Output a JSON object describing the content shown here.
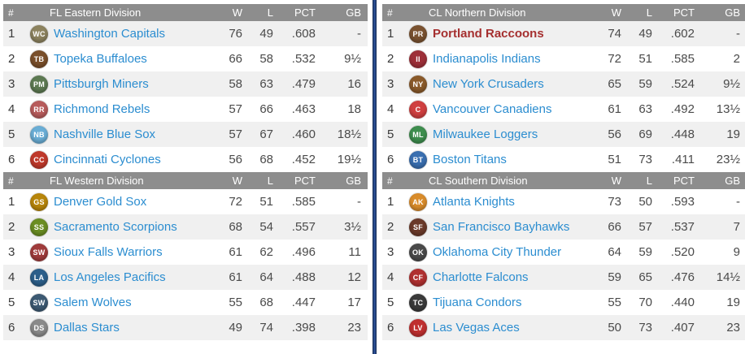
{
  "columns": {
    "rank": "#",
    "wins": "W",
    "losses": "L",
    "pct": "PCT",
    "gb": "GB"
  },
  "colors": {
    "header_bg": "#8d8d8d",
    "stripe": "#f0f0f0",
    "team_link": "#2b8dd0",
    "highlight_team": "#a52f2f",
    "divider": "#16294d"
  },
  "panels": [
    {
      "side": "left",
      "divisions": [
        {
          "name": "FL Eastern Division",
          "teams": [
            {
              "rank": "1",
              "name": "Washington Capitals",
              "icon": "capitals-logo",
              "icon_color": "#8d835f",
              "abbr": "WC",
              "w": "76",
              "l": "49",
              "pct": ".608",
              "gb": "-"
            },
            {
              "rank": "2",
              "name": "Topeka Buffaloes",
              "icon": "buffaloes-logo",
              "icon_color": "#7a4f2a",
              "abbr": "TB",
              "w": "66",
              "l": "58",
              "pct": ".532",
              "gb": "9½"
            },
            {
              "rank": "3",
              "name": "Pittsburgh Miners",
              "icon": "miners-logo",
              "icon_color": "#5d7a52",
              "abbr": "PM",
              "w": "58",
              "l": "63",
              "pct": ".479",
              "gb": "16"
            },
            {
              "rank": "4",
              "name": "Richmond Rebels",
              "icon": "rebels-logo",
              "icon_color": "#b85c5c",
              "abbr": "RR",
              "w": "57",
              "l": "66",
              "pct": ".463",
              "gb": "18"
            },
            {
              "rank": "5",
              "name": "Nashville Blue Sox",
              "icon": "blue-sox-logo",
              "icon_color": "#6aaed6",
              "abbr": "NB",
              "w": "57",
              "l": "67",
              "pct": ".460",
              "gb": "18½"
            },
            {
              "rank": "6",
              "name": "Cincinnati Cyclones",
              "icon": "cyclones-logo",
              "icon_color": "#c0392b",
              "abbr": "CC",
              "w": "56",
              "l": "68",
              "pct": ".452",
              "gb": "19½"
            }
          ]
        },
        {
          "name": "FL Western Division",
          "teams": [
            {
              "rank": "1",
              "name": "Denver Gold Sox",
              "icon": "gold-sox-logo",
              "icon_color": "#b8860b",
              "abbr": "GS",
              "w": "72",
              "l": "51",
              "pct": ".585",
              "gb": "-"
            },
            {
              "rank": "2",
              "name": "Sacramento Scorpions",
              "icon": "scorpions-logo",
              "icon_color": "#6b8e23",
              "abbr": "SS",
              "w": "68",
              "l": "54",
              "pct": ".557",
              "gb": "3½"
            },
            {
              "rank": "3",
              "name": "Sioux Falls Warriors",
              "icon": "warriors-logo",
              "icon_color": "#a03c3c",
              "abbr": "SW",
              "w": "61",
              "l": "62",
              "pct": ".496",
              "gb": "11"
            },
            {
              "rank": "4",
              "name": "Los Angeles Pacifics",
              "icon": "pacifics-logo",
              "icon_color": "#2c5f8a",
              "abbr": "LA",
              "w": "61",
              "l": "64",
              "pct": ".488",
              "gb": "12"
            },
            {
              "rank": "5",
              "name": "Salem Wolves",
              "icon": "wolves-logo",
              "icon_color": "#3d5a73",
              "abbr": "SW",
              "w": "55",
              "l": "68",
              "pct": ".447",
              "gb": "17"
            },
            {
              "rank": "6",
              "name": "Dallas Stars",
              "icon": "stars-logo",
              "icon_color": "#8a8a8a",
              "abbr": "DS",
              "w": "49",
              "l": "74",
              "pct": ".398",
              "gb": "23"
            }
          ]
        }
      ]
    },
    {
      "side": "right",
      "divisions": [
        {
          "name": "CL Northern Division",
          "teams": [
            {
              "rank": "1",
              "name": "Portland Raccoons",
              "icon": "raccoons-logo",
              "icon_color": "#7a5230",
              "abbr": "PR",
              "w": "74",
              "l": "49",
              "pct": ".602",
              "gb": "-",
              "highlight": true
            },
            {
              "rank": "2",
              "name": "Indianapolis Indians",
              "icon": "indians-logo",
              "icon_color": "#9e3039",
              "abbr": "II",
              "w": "72",
              "l": "51",
              "pct": ".585",
              "gb": "2"
            },
            {
              "rank": "3",
              "name": "New York Crusaders",
              "icon": "crusaders-logo",
              "icon_color": "#8a5a2a",
              "abbr": "NY",
              "w": "65",
              "l": "59",
              "pct": ".524",
              "gb": "9½"
            },
            {
              "rank": "4",
              "name": "Vancouver Canadiens",
              "icon": "canadiens-logo",
              "icon_color": "#d04040",
              "abbr": "C",
              "w": "61",
              "l": "63",
              "pct": ".492",
              "gb": "13½"
            },
            {
              "rank": "5",
              "name": "Milwaukee Loggers",
              "icon": "loggers-logo",
              "icon_color": "#3e8e4e",
              "abbr": "ML",
              "w": "56",
              "l": "69",
              "pct": ".448",
              "gb": "19"
            },
            {
              "rank": "6",
              "name": "Boston Titans",
              "icon": "titans-logo",
              "icon_color": "#3a6fb0",
              "abbr": "BT",
              "w": "51",
              "l": "73",
              "pct": ".411",
              "gb": "23½"
            }
          ]
        },
        {
          "name": "CL Southern Division",
          "teams": [
            {
              "rank": "1",
              "name": "Atlanta Knights",
              "icon": "knights-logo",
              "icon_color": "#d98c2b",
              "abbr": "AK",
              "w": "73",
              "l": "50",
              "pct": ".593",
              "gb": "-"
            },
            {
              "rank": "2",
              "name": "San Francisco Bayhawks",
              "icon": "bayhawks-logo",
              "icon_color": "#6b3a2a",
              "abbr": "SF",
              "w": "66",
              "l": "57",
              "pct": ".537",
              "gb": "7"
            },
            {
              "rank": "3",
              "name": "Oklahoma City Thunder",
              "icon": "thunder-logo",
              "icon_color": "#4a4a4a",
              "abbr": "OK",
              "w": "64",
              "l": "59",
              "pct": ".520",
              "gb": "9"
            },
            {
              "rank": "4",
              "name": "Charlotte Falcons",
              "icon": "falcons-logo",
              "icon_color": "#b03030",
              "abbr": "CF",
              "w": "59",
              "l": "65",
              "pct": ".476",
              "gb": "14½"
            },
            {
              "rank": "5",
              "name": "Tijuana Condors",
              "icon": "condors-logo",
              "icon_color": "#3a3a3a",
              "abbr": "TC",
              "w": "55",
              "l": "70",
              "pct": ".440",
              "gb": "19"
            },
            {
              "rank": "6",
              "name": "Las Vegas Aces",
              "icon": "aces-logo",
              "icon_color": "#c03030",
              "abbr": "LV",
              "w": "50",
              "l": "73",
              "pct": ".407",
              "gb": "23"
            }
          ]
        }
      ]
    }
  ]
}
